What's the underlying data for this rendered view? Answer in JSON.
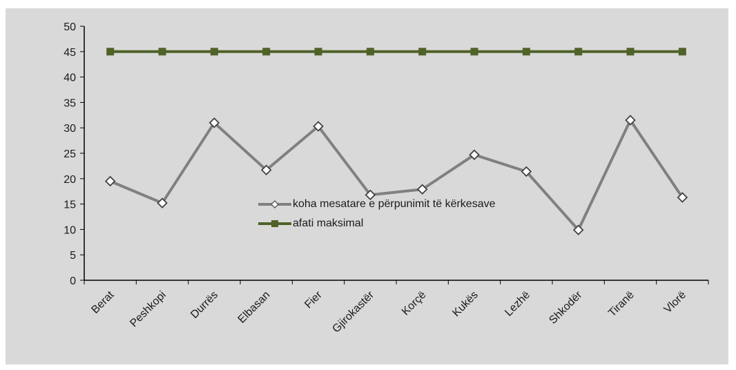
{
  "chart_data": {
    "type": "line",
    "categories": [
      "Berat",
      "Peshkopi",
      "Durrës",
      "Elbasan",
      "Fier",
      "Gjirokastër",
      "Korçë",
      "Kukës",
      "Lezhë",
      "Shkodër",
      "Tiranë",
      "Vlorë"
    ],
    "series": [
      {
        "name": "koha mesatare e përpunimit të kërkesave",
        "values": [
          19.5,
          15.2,
          31,
          21.7,
          30.3,
          16.8,
          17.9,
          24.7,
          21.4,
          9.9,
          31.5,
          16.3
        ],
        "color": "#808080",
        "marker": "diamond-open"
      },
      {
        "name": "afati maksimal",
        "values": [
          45,
          45,
          45,
          45,
          45,
          45,
          45,
          45,
          45,
          45,
          45,
          45
        ],
        "color": "#4f6228",
        "marker": "square-filled"
      }
    ],
    "ylim": [
      0,
      50
    ],
    "yticks": [
      0,
      5,
      10,
      15,
      20,
      25,
      30,
      35,
      40,
      45,
      50
    ],
    "title": "",
    "xlabel": "",
    "ylabel": "",
    "grid": false,
    "legend_position": "center",
    "background": "#d9d9d9"
  }
}
